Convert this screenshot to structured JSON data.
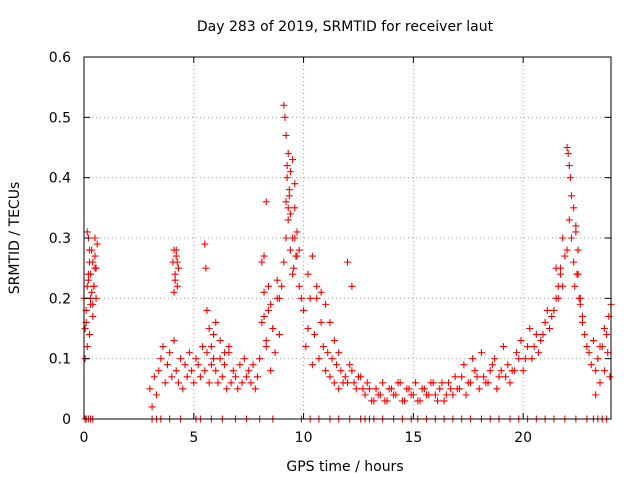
{
  "chart_data": {
    "type": "scatter",
    "title": "Day 283 of 2019, SRMTID for receiver laut",
    "xlabel": "GPS time / hours",
    "ylabel": "SRMTID / TECUs",
    "xlim": [
      0,
      24
    ],
    "ylim": [
      0,
      0.6
    ],
    "xticks": [
      0,
      5,
      10,
      15,
      20
    ],
    "xtick_labels": [
      "0",
      "5",
      "10",
      "15",
      "20"
    ],
    "yticks": [
      0,
      0.1,
      0.2,
      0.3,
      0.4,
      0.5,
      0.6
    ],
    "ytick_labels": [
      "0",
      "0.1",
      "0.2",
      "0.3",
      "0.4",
      "0.5",
      "0.6"
    ],
    "grid": true,
    "marker": "+",
    "color": "#ff0000",
    "series": [
      {
        "name": "SRMTID",
        "x": [
          0.0,
          0.05,
          0.1,
          0.15,
          0.2,
          0.25,
          0.3,
          0.35,
          0.4,
          0.45,
          0.5,
          0.55,
          0.6,
          0.2,
          0.3,
          0.4,
          0.5,
          0.15,
          0.25,
          0.35,
          0.45,
          0.1,
          0.2,
          0.3,
          0.4,
          0.5,
          0.05,
          0.15,
          0.25,
          0.55,
          3.0,
          3.1,
          3.2,
          3.3,
          3.4,
          3.5,
          3.6,
          3.7,
          3.8,
          3.9,
          4.0,
          4.1,
          4.2,
          4.3,
          4.4,
          4.5,
          4.6,
          4.7,
          4.8,
          4.9,
          5.0,
          5.1,
          5.2,
          5.3,
          5.4,
          5.5,
          5.6,
          5.7,
          5.8,
          5.9,
          4.05,
          4.1,
          4.15,
          4.2,
          4.25,
          4.3,
          4.1,
          4.2,
          4.15,
          4.25,
          6.0,
          6.1,
          6.2,
          6.3,
          6.4,
          6.5,
          6.6,
          6.7,
          6.8,
          6.9,
          7.0,
          7.1,
          7.2,
          7.3,
          7.4,
          7.5,
          7.6,
          7.7,
          7.8,
          7.9,
          5.5,
          5.55,
          5.6,
          5.7,
          5.8,
          5.9,
          6.0,
          6.2,
          6.4,
          6.6,
          8.0,
          8.1,
          8.2,
          8.3,
          8.4,
          8.5,
          8.6,
          8.7,
          8.8,
          8.9,
          9.0,
          9.1,
          9.2,
          9.3,
          9.4,
          9.5,
          9.6,
          9.7,
          9.8,
          9.9,
          9.1,
          9.15,
          9.2,
          9.25,
          9.3,
          9.35,
          9.4,
          9.2,
          9.3,
          9.25,
          9.35,
          9.4,
          9.5,
          9.6,
          9.7,
          9.8,
          9.6,
          9.5,
          9.55,
          9.65,
          8.1,
          8.2,
          8.3,
          8.4,
          8.5,
          8.6,
          8.8,
          8.9,
          8.2,
          8.3,
          10.0,
          10.1,
          10.2,
          10.3,
          10.4,
          10.5,
          10.6,
          10.7,
          10.8,
          10.9,
          11.0,
          11.1,
          11.2,
          11.3,
          11.4,
          11.5,
          11.6,
          11.7,
          11.8,
          11.9,
          10.2,
          10.4,
          10.6,
          10.8,
          11.0,
          11.2,
          11.4,
          11.6,
          12.0,
          12.2,
          12.0,
          12.2,
          12.4,
          12.6,
          12.8,
          13.0,
          13.2,
          13.4,
          13.6,
          13.8,
          14.0,
          14.2,
          14.4,
          14.6,
          14.8,
          15.0,
          15.2,
          15.4,
          15.6,
          15.8,
          12.1,
          12.3,
          12.5,
          12.7,
          12.9,
          13.1,
          13.3,
          13.5,
          13.7,
          13.9,
          14.1,
          14.3,
          14.5,
          14.7,
          14.9,
          15.1,
          15.3,
          15.5,
          15.7,
          15.9,
          16.0,
          16.2,
          16.4,
          16.6,
          16.8,
          17.0,
          17.2,
          17.4,
          17.6,
          17.8,
          18.0,
          18.2,
          18.4,
          18.6,
          18.8,
          19.0,
          19.2,
          19.4,
          19.6,
          19.8,
          16.1,
          16.3,
          16.5,
          16.7,
          16.9,
          17.1,
          17.3,
          17.5,
          17.7,
          17.9,
          18.1,
          18.3,
          18.5,
          18.7,
          18.9,
          19.1,
          19.3,
          19.5,
          19.7,
          19.9,
          20.0,
          20.2,
          20.4,
          20.6,
          20.8,
          21.0,
          21.2,
          21.4,
          21.6,
          21.8,
          20.1,
          20.3,
          20.5,
          20.7,
          20.9,
          21.1,
          21.3,
          21.5,
          21.7,
          21.9,
          22.0,
          22.05,
          22.1,
          22.15,
          22.2,
          22.0,
          22.1,
          22.2,
          22.3,
          22.4,
          22.5,
          22.6,
          22.7,
          22.8,
          22.9,
          23.0,
          23.2,
          23.4,
          23.6,
          23.8,
          22.3,
          22.4,
          22.5,
          22.35,
          22.45,
          22.55,
          22.6,
          22.7,
          23.1,
          23.3,
          23.5,
          23.7,
          23.9,
          24.0,
          23.85,
          23.95,
          21.5,
          21.6,
          21.7,
          21.8,
          0.05,
          0.1,
          0.2,
          0.3,
          0.4,
          3.1,
          3.3,
          3.5,
          3.9,
          4.4,
          5.1,
          5.3,
          5.8,
          6.3,
          6.9,
          7.4,
          8.0,
          8.6,
          9.9,
          10.3,
          10.7,
          11.2,
          11.6,
          12.1,
          12.6,
          12.8,
          13.0,
          13.2,
          13.6,
          14.1,
          14.5,
          14.9,
          15.2,
          15.6,
          16.0,
          16.4,
          16.8,
          17.2,
          17.6,
          18.1,
          18.5,
          18.9,
          19.4,
          19.8,
          20.2,
          20.6,
          21.0,
          21.4,
          21.9,
          22.4,
          22.9,
          23.2,
          23.4,
          23.6,
          23.8,
          23.3,
          23.5,
          23.7
        ],
        "y": [
          0.2,
          0.15,
          0.18,
          0.31,
          0.3,
          0.26,
          0.24,
          0.21,
          0.19,
          0.22,
          0.27,
          0.25,
          0.29,
          0.23,
          0.2,
          0.17,
          0.25,
          0.12,
          0.14,
          0.28,
          0.22,
          0.16,
          0.24,
          0.19,
          0.26,
          0.3,
          0.1,
          0.22,
          0.28,
          0.2,
          0.05,
          0.02,
          0.07,
          0.04,
          0.08,
          0.1,
          0.12,
          0.06,
          0.09,
          0.11,
          0.07,
          0.13,
          0.08,
          0.06,
          0.1,
          0.05,
          0.09,
          0.07,
          0.11,
          0.08,
          0.06,
          0.1,
          0.09,
          0.07,
          0.12,
          0.08,
          0.11,
          0.06,
          0.09,
          0.1,
          0.26,
          0.28,
          0.24,
          0.27,
          0.22,
          0.25,
          0.21,
          0.28,
          0.23,
          0.26,
          0.08,
          0.06,
          0.1,
          0.07,
          0.09,
          0.05,
          0.11,
          0.06,
          0.08,
          0.07,
          0.05,
          0.09,
          0.06,
          0.1,
          0.07,
          0.08,
          0.06,
          0.09,
          0.05,
          0.07,
          0.29,
          0.25,
          0.18,
          0.15,
          0.12,
          0.14,
          0.16,
          0.13,
          0.11,
          0.12,
          0.1,
          0.16,
          0.21,
          0.12,
          0.18,
          0.08,
          0.15,
          0.11,
          0.2,
          0.14,
          0.22,
          0.26,
          0.3,
          0.35,
          0.28,
          0.24,
          0.3,
          0.27,
          0.22,
          0.2,
          0.52,
          0.5,
          0.47,
          0.42,
          0.44,
          0.38,
          0.41,
          0.36,
          0.33,
          0.4,
          0.37,
          0.34,
          0.43,
          0.39,
          0.31,
          0.28,
          0.35,
          0.3,
          0.25,
          0.27,
          0.26,
          0.27,
          0.36,
          0.22,
          0.19,
          0.15,
          0.23,
          0.2,
          0.17,
          0.13,
          0.18,
          0.12,
          0.15,
          0.2,
          0.09,
          0.14,
          0.22,
          0.1,
          0.16,
          0.12,
          0.08,
          0.11,
          0.07,
          0.1,
          0.06,
          0.09,
          0.05,
          0.08,
          0.06,
          0.07,
          0.24,
          0.27,
          0.2,
          0.21,
          0.19,
          0.16,
          0.13,
          0.11,
          0.26,
          0.22,
          0.06,
          0.08,
          0.05,
          0.07,
          0.04,
          0.05,
          0.03,
          0.04,
          0.06,
          0.03,
          0.05,
          0.04,
          0.06,
          0.03,
          0.05,
          0.04,
          0.03,
          0.05,
          0.04,
          0.06,
          0.09,
          0.06,
          0.07,
          0.05,
          0.06,
          0.03,
          0.05,
          0.04,
          0.03,
          0.05,
          0.04,
          0.06,
          0.03,
          0.05,
          0.04,
          0.06,
          0.03,
          0.05,
          0.04,
          0.06,
          0.04,
          0.05,
          0.03,
          0.06,
          0.04,
          0.05,
          0.07,
          0.04,
          0.06,
          0.08,
          0.05,
          0.07,
          0.06,
          0.09,
          0.05,
          0.08,
          0.07,
          0.06,
          0.08,
          0.1,
          0.03,
          0.06,
          0.04,
          0.05,
          0.07,
          0.05,
          0.09,
          0.06,
          0.1,
          0.07,
          0.11,
          0.06,
          0.08,
          0.1,
          0.07,
          0.12,
          0.09,
          0.08,
          0.11,
          0.13,
          0.08,
          0.12,
          0.1,
          0.14,
          0.13,
          0.16,
          0.15,
          0.18,
          0.2,
          0.22,
          0.1,
          0.15,
          0.12,
          0.11,
          0.14,
          0.18,
          0.17,
          0.25,
          0.24,
          0.27,
          0.45,
          0.44,
          0.42,
          0.4,
          0.37,
          0.28,
          0.33,
          0.3,
          0.26,
          0.32,
          0.24,
          0.2,
          0.17,
          0.14,
          0.12,
          0.11,
          0.13,
          0.1,
          0.12,
          0.14,
          0.35,
          0.31,
          0.28,
          0.22,
          0.24,
          0.2,
          0.19,
          0.16,
          0.09,
          0.08,
          0.12,
          0.15,
          0.17,
          0.19,
          0.11,
          0.07,
          0.2,
          0.22,
          0.25,
          0.3,
          0.0,
          0.0,
          0.0,
          0.0,
          0.0,
          0.0,
          0.0,
          0.0,
          0.0,
          0.0,
          0.0,
          0.0,
          0.0,
          0.0,
          0.0,
          0.0,
          0.0,
          0.0,
          0.0,
          0.0,
          0.0,
          0.0,
          0.0,
          0.0,
          0.0,
          0.0,
          0.0,
          0.0,
          0.0,
          0.0,
          0.0,
          0.0,
          0.0,
          0.0,
          0.0,
          0.0,
          0.0,
          0.0,
          0.0,
          0.0,
          0.0,
          0.0,
          0.0,
          0.0,
          0.0,
          0.0,
          0.0,
          0.0,
          0.0,
          0.0,
          0.0,
          0.0,
          0.0,
          0.0,
          0.0,
          0.04,
          0.06,
          0.08
        ]
      }
    ]
  }
}
